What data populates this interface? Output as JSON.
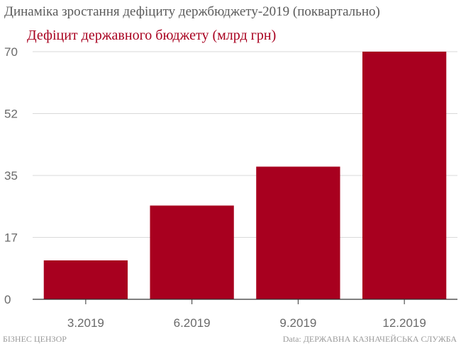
{
  "title": "Динаміка зростання дефіциту держбюджету-2019 (поквартально)",
  "footer": {
    "source_left": "БІЗНЕС ЦЕНЗОР",
    "source_right": "Data: ДЕРЖАВНА КАЗНАЧЕЙСЬКА СЛУЖБА"
  },
  "colors": {
    "bar": "#a8001f",
    "axis": "#333333",
    "grid": "#d9d9d9"
  },
  "chart_data": {
    "type": "bar",
    "title": "Динаміка зростання дефіциту держбюджету-2019 (поквартально)",
    "categories": [
      "3.2019",
      "6.2019",
      "9.2019",
      "12.2019"
    ],
    "series": [
      {
        "name": "Дефіцит державного бюджету (млрд грн)",
        "values": [
          11,
          26.5,
          37.5,
          70
        ]
      }
    ],
    "yticks": [
      "0",
      "17",
      "35",
      "52",
      "70"
    ],
    "ytick_values": [
      0,
      17.5,
      35,
      52.5,
      70
    ],
    "ylim": [
      0,
      70
    ],
    "grid": true,
    "xlabel": "",
    "ylabel": ""
  }
}
